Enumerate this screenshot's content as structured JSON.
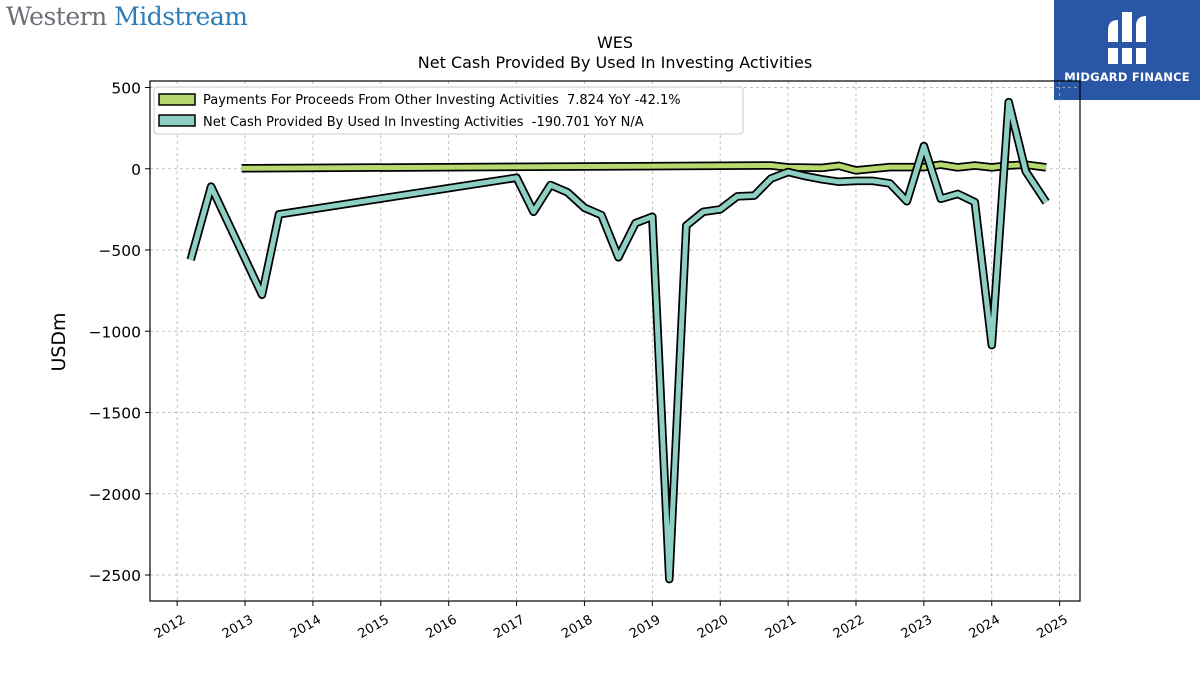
{
  "brand": {
    "name_part1": "Western ",
    "name_part2": "Midstream"
  },
  "badge": {
    "text": "MIDGARD FINANCE",
    "icon": "midgard-logo-icon",
    "color": "#2a57a5"
  },
  "chart_data": {
    "type": "line",
    "title": "WES",
    "subtitle": "Net Cash Provided By Used In Investing Activities",
    "ylabel": "USDm",
    "xlabel": "",
    "xlim": [
      2011.6,
      2025.3
    ],
    "ylim": [
      -2660,
      540
    ],
    "yticks": [
      500,
      0,
      -500,
      -1000,
      -1500,
      -2000,
      -2500
    ],
    "xticks": [
      2012,
      2013,
      2014,
      2015,
      2016,
      2017,
      2018,
      2019,
      2020,
      2021,
      2022,
      2023,
      2024,
      2025
    ],
    "grid": true,
    "legend_position": "top-left",
    "series": [
      {
        "name": "Payments For Proceeds From Other Investing Activities",
        "legend": "Payments For Proceeds From Other Investing Activities  7.824 YoY -42.1%",
        "color": "#b5d96e",
        "points": [
          [
            2012.95,
            3
          ],
          [
            2020.75,
            20
          ],
          [
            2021.0,
            8
          ],
          [
            2021.5,
            5
          ],
          [
            2021.75,
            18
          ],
          [
            2022.0,
            -10
          ],
          [
            2022.5,
            10
          ],
          [
            2022.75,
            10
          ],
          [
            2023.0,
            10
          ],
          [
            2023.25,
            25
          ],
          [
            2023.5,
            8
          ],
          [
            2023.75,
            20
          ],
          [
            2024.0,
            8
          ],
          [
            2024.25,
            20
          ],
          [
            2024.5,
            25
          ],
          [
            2024.8,
            8
          ]
        ]
      },
      {
        "name": "Net Cash Provided By Used In Investing Activities",
        "legend": "Net Cash Provided By Used In Investing Activities  -190.701 YoY N/A",
        "color": "#8ecfc3",
        "points": [
          [
            2012.2,
            -560
          ],
          [
            2012.5,
            -110
          ],
          [
            2013.25,
            -775
          ],
          [
            2013.5,
            -280
          ],
          [
            2017.0,
            -55
          ],
          [
            2017.25,
            -265
          ],
          [
            2017.5,
            -100
          ],
          [
            2017.75,
            -145
          ],
          [
            2018.0,
            -240
          ],
          [
            2018.25,
            -285
          ],
          [
            2018.5,
            -545
          ],
          [
            2018.75,
            -335
          ],
          [
            2019.0,
            -295
          ],
          [
            2019.25,
            -2525
          ],
          [
            2019.5,
            -350
          ],
          [
            2019.75,
            -265
          ],
          [
            2020.0,
            -250
          ],
          [
            2020.25,
            -170
          ],
          [
            2020.5,
            -165
          ],
          [
            2020.75,
            -60
          ],
          [
            2021.0,
            -20
          ],
          [
            2021.25,
            -45
          ],
          [
            2021.5,
            -65
          ],
          [
            2021.75,
            -80
          ],
          [
            2022.0,
            -75
          ],
          [
            2022.25,
            -75
          ],
          [
            2022.5,
            -90
          ],
          [
            2022.75,
            -200
          ],
          [
            2023.0,
            140
          ],
          [
            2023.25,
            -185
          ],
          [
            2023.5,
            -155
          ],
          [
            2023.75,
            -205
          ],
          [
            2024.0,
            -1085
          ],
          [
            2024.25,
            410
          ],
          [
            2024.5,
            -15
          ],
          [
            2024.8,
            -205
          ]
        ]
      }
    ]
  }
}
